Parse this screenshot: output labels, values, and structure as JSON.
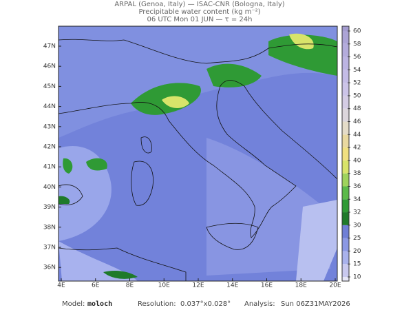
{
  "header": {
    "line1": "ARPAL (Genoa, Italy)  —  ISAC-CNR (Bologna, Italy)",
    "line2": "Precipitable water content (kg m⁻²)",
    "line3": "06 UTC Mon 01 JUN  —  τ = 24h"
  },
  "map": {
    "lat_labels": [
      "47N",
      "46N",
      "45N",
      "44N",
      "43N",
      "42N",
      "41N",
      "40N",
      "39N",
      "38N",
      "37N",
      "36N"
    ],
    "lon_labels": [
      "4E",
      "6E",
      "8E",
      "10E",
      "12E",
      "14E",
      "16E",
      "18E",
      "20E"
    ]
  },
  "colorbar": {
    "levels": [
      10,
      15,
      20,
      25,
      30,
      32,
      34,
      36,
      38,
      40,
      42,
      44,
      46,
      48,
      50,
      52,
      54,
      56,
      58,
      60
    ],
    "colors": [
      "#c9c9ef",
      "#a9b2ec",
      "#8b98e4",
      "#6f7fd6",
      "#1f7a2a",
      "#2f9a35",
      "#5cba4a",
      "#9fd35c",
      "#d8e46a",
      "#f0e080",
      "#e9d9a0",
      "#e4dcc8",
      "#dcd6dc",
      "#d4cce4",
      "#ccc4e8",
      "#c4bce6",
      "#bcb4e2",
      "#b4acdc",
      "#aca4d6"
    ]
  },
  "footer": {
    "model_label": "Model:",
    "model": "moloch",
    "resolution_label": "Resolution:",
    "resolution": "0.037°x0.028°",
    "analysis_label": "Analysis:",
    "analysis": "Sun 06Z31MAY2026"
  }
}
